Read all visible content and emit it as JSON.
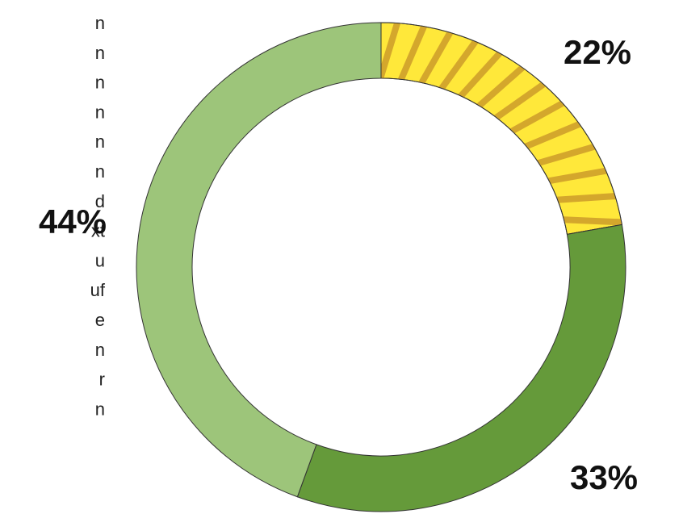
{
  "chart_data": {
    "type": "donut",
    "categories": [
      null,
      null,
      null
    ],
    "values": [
      22,
      33,
      44
    ],
    "value_labels": [
      "22%",
      "33%",
      "44%"
    ],
    "colors": [
      "#ffe83a",
      "#659a3a",
      "#9dc57a"
    ],
    "striped": [
      true,
      false,
      false
    ]
  },
  "side_text": [
    "n",
    "n",
    "n",
    "n",
    "n",
    "n",
    "d",
    "xt",
    "u",
    "uf",
    "e",
    "n",
    "r",
    "n"
  ]
}
